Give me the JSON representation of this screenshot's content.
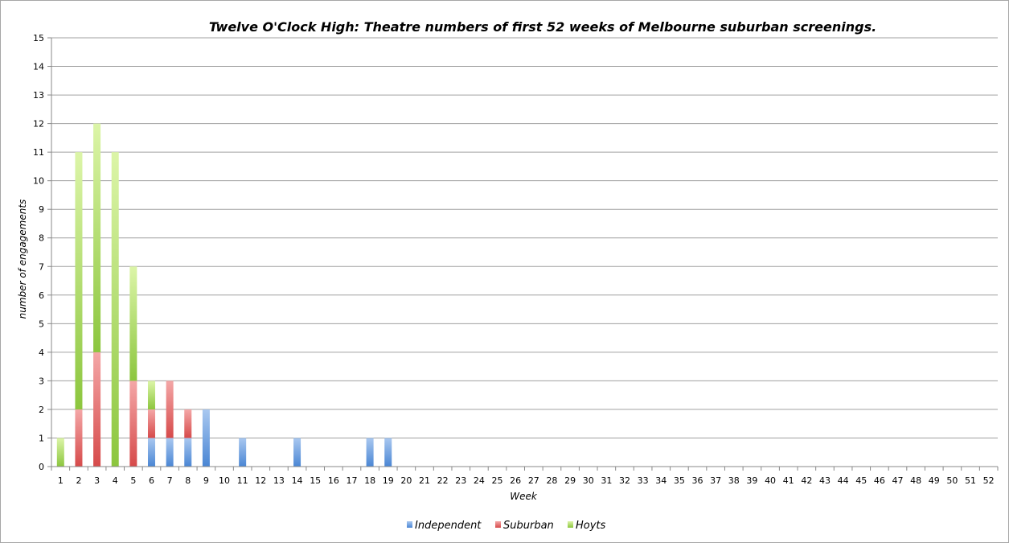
{
  "chart_data": {
    "type": "bar",
    "stacked": true,
    "title": "Twelve O'Clock High: Theatre numbers of first 52 weeks of Melbourne suburban screenings.",
    "xlabel": "Week",
    "ylabel": "number of engagements",
    "ylim": [
      0,
      15
    ],
    "y_ticks": [
      0,
      1,
      2,
      3,
      4,
      5,
      6,
      7,
      8,
      9,
      10,
      11,
      12,
      13,
      14,
      15
    ],
    "grid": true,
    "legend_position": "bottom",
    "categories": [
      "1",
      "2",
      "3",
      "4",
      "5",
      "6",
      "7",
      "8",
      "9",
      "10",
      "11",
      "12",
      "13",
      "14",
      "15",
      "16",
      "17",
      "18",
      "19",
      "20",
      "21",
      "22",
      "23",
      "24",
      "25",
      "26",
      "27",
      "28",
      "29",
      "30",
      "31",
      "32",
      "33",
      "34",
      "35",
      "36",
      "37",
      "38",
      "39",
      "40",
      "41",
      "42",
      "43",
      "44",
      "45",
      "46",
      "47",
      "48",
      "49",
      "50",
      "51",
      "52"
    ],
    "series": [
      {
        "name": "Independent",
        "color": "#4a86d4",
        "values": [
          0,
          0,
          0,
          0,
          0,
          1,
          1,
          1,
          2,
          0,
          1,
          0,
          0,
          1,
          0,
          0,
          0,
          1,
          1,
          0,
          0,
          0,
          0,
          0,
          0,
          0,
          0,
          0,
          0,
          0,
          0,
          0,
          0,
          0,
          0,
          0,
          0,
          0,
          0,
          0,
          0,
          0,
          0,
          0,
          0,
          0,
          0,
          0,
          0,
          0,
          0,
          0
        ]
      },
      {
        "name": "Suburban",
        "color": "#d64a4a",
        "values": [
          0,
          2,
          4,
          0,
          3,
          1,
          2,
          1,
          0,
          0,
          0,
          0,
          0,
          0,
          0,
          0,
          0,
          0,
          0,
          0,
          0,
          0,
          0,
          0,
          0,
          0,
          0,
          0,
          0,
          0,
          0,
          0,
          0,
          0,
          0,
          0,
          0,
          0,
          0,
          0,
          0,
          0,
          0,
          0,
          0,
          0,
          0,
          0,
          0,
          0,
          0,
          0
        ]
      },
      {
        "name": "Hoyts",
        "color": "#8cc63e",
        "values": [
          1,
          9,
          8,
          11,
          4,
          1,
          0,
          0,
          0,
          0,
          0,
          0,
          0,
          0,
          0,
          0,
          0,
          0,
          0,
          0,
          0,
          0,
          0,
          0,
          0,
          0,
          0,
          0,
          0,
          0,
          0,
          0,
          0,
          0,
          0,
          0,
          0,
          0,
          0,
          0,
          0,
          0,
          0,
          0,
          0,
          0,
          0,
          0,
          0,
          0,
          0,
          0
        ]
      }
    ]
  }
}
